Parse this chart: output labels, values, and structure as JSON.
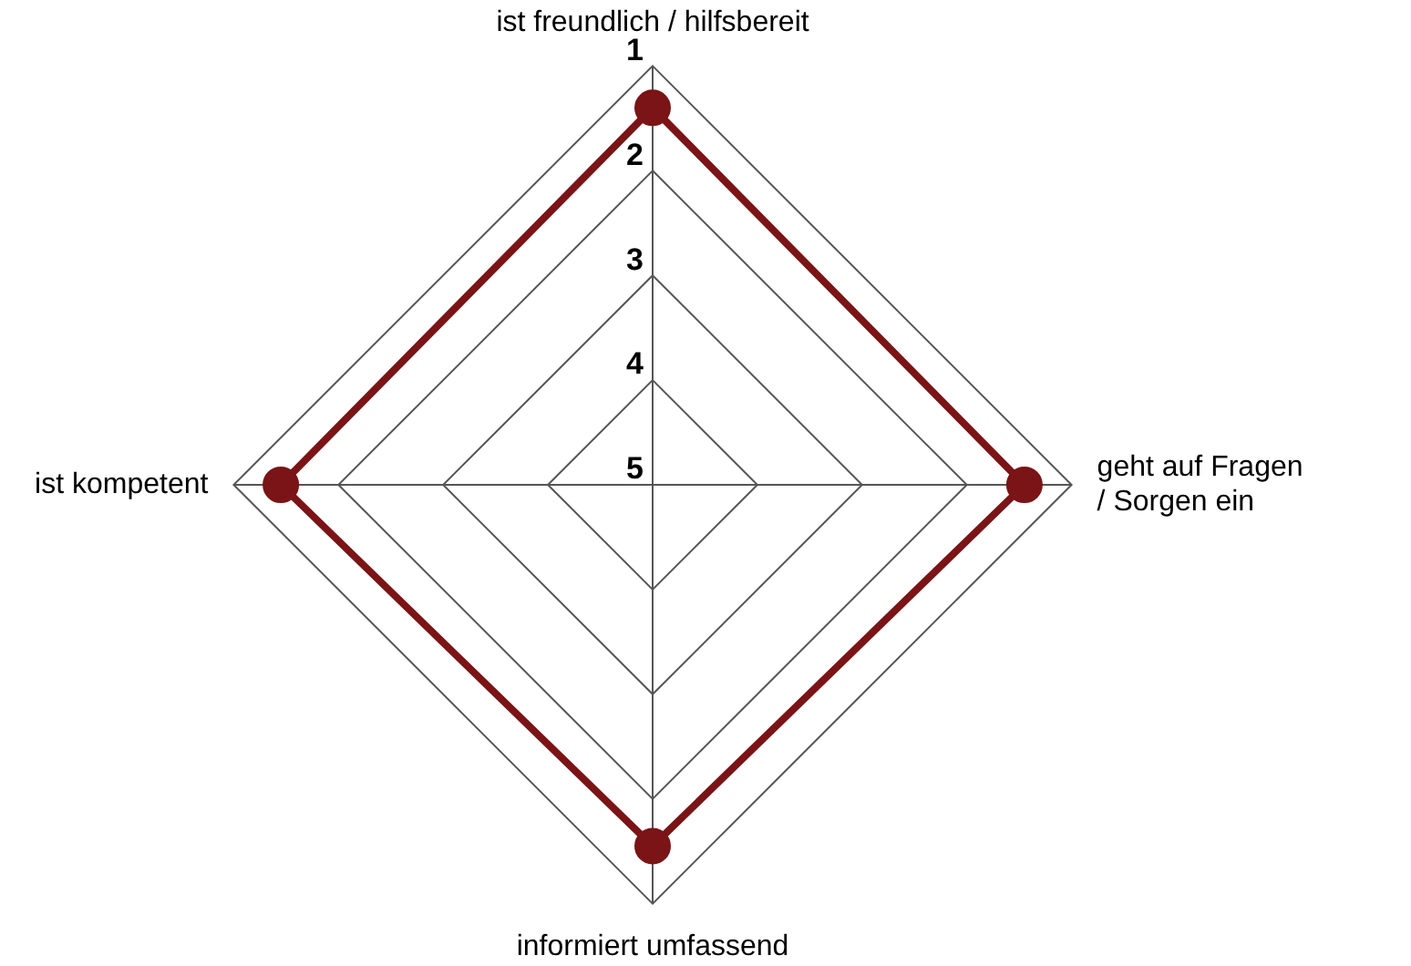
{
  "chart_data": {
    "type": "radar",
    "categories": [
      "ist freundlich / hilfsbereit",
      "geht auf Fragen / Sorgen ein",
      "informiert umfassend",
      "ist kompetent"
    ],
    "series": [
      {
        "color": "#7a1416",
        "values": [
          1.4,
          1.45,
          1.55,
          1.45
        ]
      }
    ],
    "ylim": [
      5,
      1
    ],
    "yticks": [
      1,
      2,
      3,
      4,
      5
    ],
    "grid": true,
    "legend": false,
    "marker": "circle",
    "line_style": "solid"
  }
}
